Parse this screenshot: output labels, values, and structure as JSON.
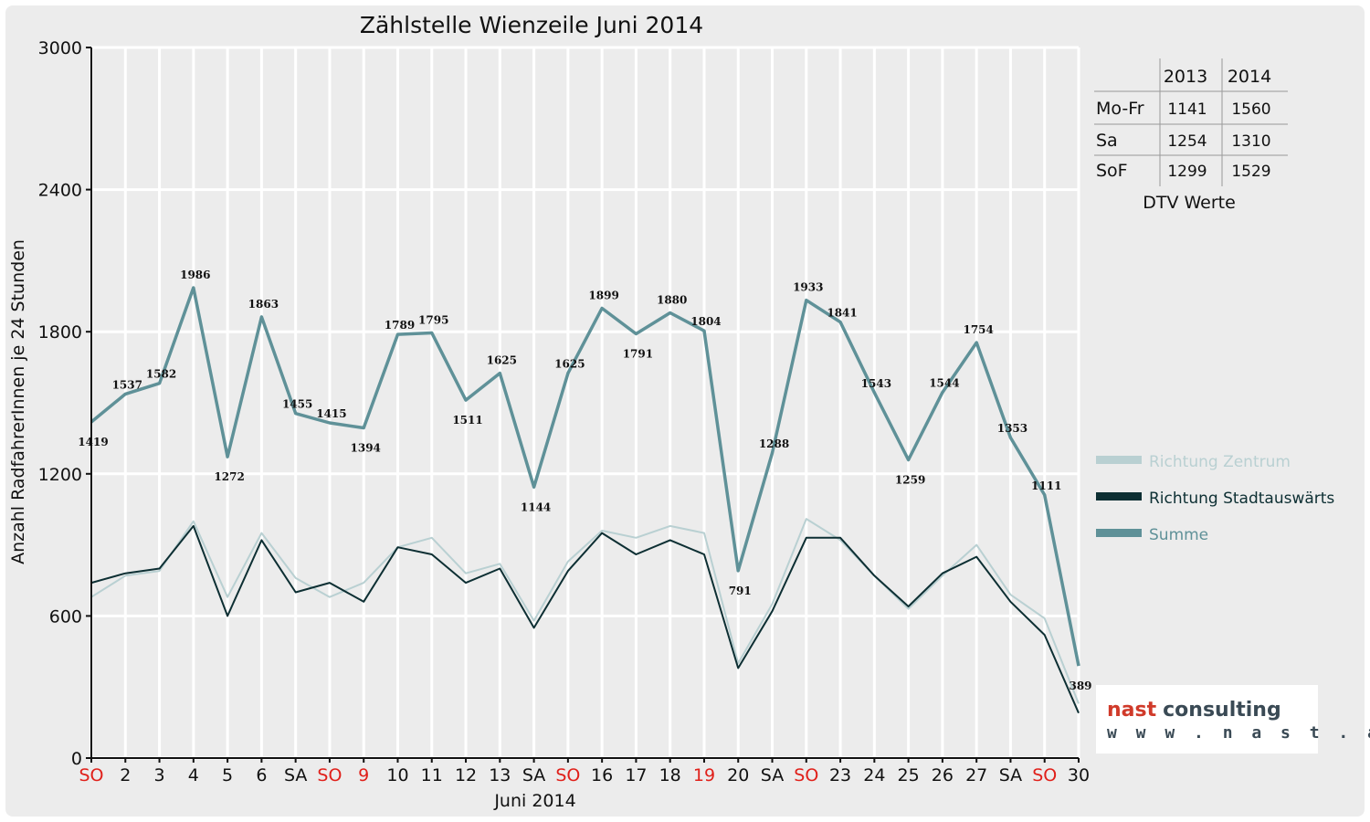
{
  "chart_data": {
    "type": "line",
    "title": "Zählstelle Wienzeile Juni 2014",
    "xlabel": "Juni 2014",
    "ylabel": "Anzahl RadfahrerInnen je 24 Stunden",
    "ylim": [
      0,
      3000
    ],
    "yticks": [
      "0",
      "600",
      "1200",
      "1800",
      "2400",
      "3000"
    ],
    "grid": true,
    "legend_position": "right",
    "categories": [
      "SO",
      "2",
      "3",
      "4",
      "5",
      "6",
      "SA",
      "SO",
      "9",
      "10",
      "11",
      "12",
      "13",
      "SA",
      "SO",
      "16",
      "17",
      "18",
      "19",
      "20",
      "SA",
      "SO",
      "23",
      "24",
      "25",
      "26",
      "27",
      "SA",
      "SO",
      "30"
    ],
    "holiday_flags": [
      true,
      false,
      false,
      false,
      false,
      false,
      false,
      true,
      true,
      false,
      false,
      false,
      false,
      false,
      true,
      false,
      false,
      false,
      true,
      false,
      false,
      true,
      false,
      false,
      false,
      false,
      false,
      false,
      true,
      false
    ],
    "series": [
      {
        "name": "Richtung Zentrum",
        "color": "#b9d0d2",
        "values": [
          680,
          770,
          790,
          1000,
          680,
          950,
          760,
          680,
          740,
          890,
          930,
          780,
          820,
          580,
          830,
          960,
          930,
          980,
          950,
          400,
          650,
          1010,
          920,
          770,
          630,
          770,
          900,
          690,
          590,
          230
        ]
      },
      {
        "name": "Richtung Stadtauswärts",
        "color": "#0d2f33",
        "values": [
          740,
          780,
          800,
          980,
          600,
          920,
          700,
          740,
          660,
          890,
          860,
          740,
          800,
          550,
          790,
          950,
          860,
          920,
          860,
          380,
          620,
          930,
          930,
          770,
          640,
          780,
          850,
          660,
          520,
          190
        ]
      },
      {
        "name": "Summe",
        "color": "#5f9198",
        "values": [
          1419,
          1537,
          1582,
          1986,
          1272,
          1863,
          1455,
          1415,
          1394,
          1789,
          1795,
          1511,
          1625,
          1144,
          1625,
          1899,
          1791,
          1880,
          1804,
          791,
          1288,
          1933,
          1841,
          1543,
          1259,
          1544,
          1754,
          1353,
          1111,
          389
        ]
      }
    ],
    "data_labels": [
      "1419",
      "1537",
      "1582",
      "1986",
      "1272",
      "1863",
      "1455",
      "1415",
      "1394",
      "1789",
      "1795",
      "1511",
      "1625",
      "1144",
      "1625",
      "1899",
      "1791",
      "1880",
      "1804",
      "791",
      "1288",
      "1933",
      "1841",
      "1543",
      "1259",
      "1544",
      "1754",
      "1353",
      "1111",
      "389"
    ]
  },
  "dtv_table": {
    "headers": [
      "2013",
      "2014"
    ],
    "rows": [
      {
        "label": "Mo-Fr",
        "v2013": "1141",
        "v2014": "1560"
      },
      {
        "label": "Sa",
        "v2013": "1254",
        "v2014": "1310"
      },
      {
        "label": "SoF",
        "v2013": "1299",
        "v2014": "1529"
      }
    ],
    "caption": "DTV Werte"
  },
  "logo": {
    "brand_a": "nast",
    "brand_b": "consulting",
    "url": "w w w . n a s t . a t"
  },
  "colors": {
    "holiday_tick": "#e0201a",
    "normal_tick": "#111111",
    "grid": "#ffffff"
  }
}
